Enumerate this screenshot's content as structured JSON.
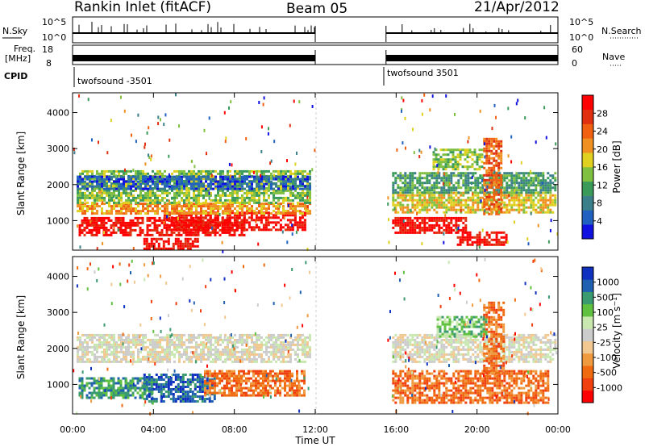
{
  "header": {
    "station": "Rankin Inlet (fitACF)",
    "beam": "Beam 05",
    "date": "21/Apr/2012"
  },
  "panels": {
    "nsky_label": "N.Sky",
    "nsky_ticks": [
      "10^5",
      "10^0"
    ],
    "nsearch_label": "N.Search",
    "nsearch_ticks": [
      "10^5",
      "10^0"
    ],
    "freq_label_1": "Freq.",
    "freq_label_2": "[MHz]",
    "freq_ticks": [
      "18",
      "8"
    ],
    "nave_label": "Nave",
    "nave_ticks": [
      "60",
      "0"
    ],
    "cpid_label": "CPID",
    "cpid_segments": [
      {
        "label": "twofsound -3501",
        "start_h": 0,
        "end_h": 12
      },
      {
        "label": "twofsound 3501",
        "start_h": 15.5,
        "end_h": 24
      }
    ]
  },
  "colors": {
    "power": [
      "#1010e0",
      "#2060c0",
      "#3a7f8a",
      "#3a9a5a",
      "#80c040",
      "#e0d020",
      "#f09020",
      "#f06010",
      "#e03010",
      "#ff0000"
    ],
    "velocity": [
      "#ff0000",
      "#f04010",
      "#f06a10",
      "#f09a40",
      "#f0c890",
      "#cccccc",
      "#c8e8b0",
      "#60c040",
      "#3a9a70",
      "#2060b0",
      "#1030c0"
    ]
  },
  "chart_data": [
    {
      "type": "heatmap",
      "name": "Power",
      "ylabel": "Slant Range [km]",
      "xlabel": "Time UT",
      "x_ticks": [
        "00:00",
        "04:00",
        "08:00",
        "12:00",
        "16:00",
        "20:00",
        "00:00"
      ],
      "x_tick_hours": [
        0,
        4,
        8,
        12,
        16,
        20,
        24
      ],
      "xlim_hours": [
        0,
        24
      ],
      "y_ticks": [
        1000,
        2000,
        3000,
        4000
      ],
      "ylim": [
        180,
        4550
      ],
      "colorbar_label": "Power [dB]",
      "colorbar_ticks": [
        "4",
        "8",
        "12",
        "16",
        "20",
        "24",
        "28"
      ],
      "data_gap_hours": [
        12,
        15.5
      ],
      "regions": [
        {
          "t0": 0.3,
          "t1": 8.5,
          "r0": 600,
          "r1": 1100,
          "level": 9
        },
        {
          "t0": 4.5,
          "t1": 11.5,
          "r0": 750,
          "r1": 1250,
          "level": 9
        },
        {
          "t0": 3.5,
          "t1": 6.2,
          "r0": 250,
          "r1": 520,
          "level": 9
        },
        {
          "t0": 0.2,
          "t1": 11.8,
          "r0": 1200,
          "r1": 1500,
          "level": 6
        },
        {
          "t0": 0.2,
          "t1": 11.8,
          "r0": 1500,
          "r1": 2400,
          "level": 4
        },
        {
          "t0": 0.2,
          "t1": 11.8,
          "r0": 1900,
          "r1": 2250,
          "level": 1
        },
        {
          "t0": 15.8,
          "t1": 19.5,
          "r0": 650,
          "r1": 1100,
          "level": 9
        },
        {
          "t0": 19.0,
          "t1": 21.5,
          "r0": 300,
          "r1": 700,
          "level": 9
        },
        {
          "t0": 15.8,
          "t1": 23.9,
          "r0": 1200,
          "r1": 1800,
          "level": 5
        },
        {
          "t0": 15.8,
          "t1": 23.9,
          "r0": 1800,
          "r1": 2350,
          "level": 3
        },
        {
          "t0": 20.3,
          "t1": 21.2,
          "r0": 1200,
          "r1": 3300,
          "level": 7
        },
        {
          "t0": 17.8,
          "t1": 20.2,
          "r0": 2400,
          "r1": 3000,
          "level": 4
        }
      ]
    },
    {
      "type": "heatmap",
      "name": "Velocity",
      "ylabel": "Slant Range [km]",
      "xlabel": "Time UT",
      "x_ticks": [
        "00:00",
        "04:00",
        "08:00",
        "12:00",
        "16:00",
        "20:00",
        "00:00"
      ],
      "x_tick_hours": [
        0,
        4,
        8,
        12,
        16,
        20,
        24
      ],
      "xlim_hours": [
        0,
        24
      ],
      "y_ticks": [
        1000,
        2000,
        3000,
        4000
      ],
      "ylim": [
        180,
        4550
      ],
      "colorbar_label": "Velocity [m s^-1]",
      "colorbar_ticks": [
        "1000",
        "500",
        "100",
        "25",
        "-25",
        "-100",
        "-500",
        "-1000"
      ],
      "data_gap_hours": [
        12,
        15.5
      ],
      "regions": [
        {
          "t0": 0.2,
          "t1": 11.8,
          "r0": 1600,
          "r1": 2400,
          "level": 5
        },
        {
          "t0": 0.3,
          "t1": 4.0,
          "r0": 600,
          "r1": 1200,
          "level": 8
        },
        {
          "t0": 3.5,
          "t1": 7.0,
          "r0": 500,
          "r1": 1300,
          "level": 9
        },
        {
          "t0": 6.5,
          "t1": 11.5,
          "r0": 700,
          "r1": 1400,
          "level": 2
        },
        {
          "t0": 15.8,
          "t1": 23.9,
          "r0": 1600,
          "r1": 2400,
          "level": 5
        },
        {
          "t0": 15.8,
          "t1": 23.5,
          "r0": 500,
          "r1": 1400,
          "level": 2
        },
        {
          "t0": 20.3,
          "t1": 21.3,
          "r0": 1300,
          "r1": 3300,
          "level": 2
        },
        {
          "t0": 18.0,
          "t1": 20.5,
          "r0": 2300,
          "r1": 2900,
          "level": 7
        }
      ]
    }
  ]
}
